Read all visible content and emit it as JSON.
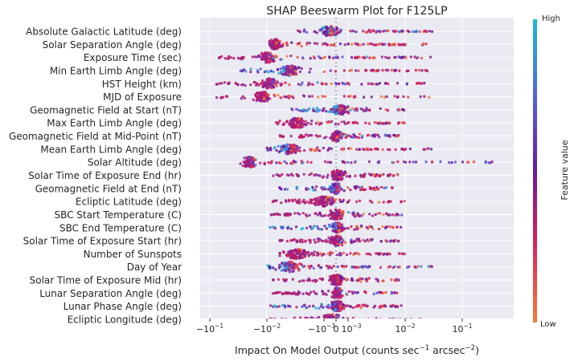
{
  "chart_data": {
    "type": "scatter",
    "title": "SHAP Beeswarm Plot for F125LP",
    "xlabel_main": "Impact On Model Output (counts sec",
    "xlabel_sup1": "−1",
    "xlabel_mid": " arcsec",
    "xlabel_sup2": "−2",
    "xlabel_end": ")",
    "x_ticks": [
      {
        "label": "−10",
        "sup": "−1",
        "value": -0.1
      },
      {
        "label": "−10",
        "sup": "−2",
        "value": -0.01
      },
      {
        "label": "−10",
        "sup": "−3",
        "value": -0.001
      },
      {
        "label": "0",
        "sup": "",
        "value": 0
      },
      {
        "label": "10",
        "sup": "−3",
        "value": 0.001
      },
      {
        "label": "10",
        "sup": "−2",
        "value": 0.01
      },
      {
        "label": "10",
        "sup": "−1",
        "value": 0.1
      }
    ],
    "x_scale": "symlog",
    "colorbar": {
      "label": "Feature value",
      "high": "High",
      "low": "Low"
    },
    "colors": {
      "high": "#1fbad6",
      "mid": "#6a1b9a",
      "mid2": "#d81b60",
      "low": "#f57c3a",
      "plot_bg": "#eaeaf2",
      "grid": "#ffffff"
    },
    "features": [
      {
        "name": "Absolute Galactic Latitude (deg)",
        "min": -0.003,
        "max": 0.03,
        "center": -0.0005,
        "spread": 0.6
      },
      {
        "name": "Solar Separation Angle (deg)",
        "min": -0.009,
        "max": 0.03,
        "center": -0.007,
        "spread": 0.5
      },
      {
        "name": "Exposure Time (sec)",
        "min": -0.07,
        "max": 0.03,
        "center": -0.01,
        "spread": 0.7
      },
      {
        "name": "Min Earth Limb Angle (deg)",
        "min": -0.03,
        "max": 0.03,
        "center": -0.004,
        "spread": 0.8
      },
      {
        "name": "HST Height (km)",
        "min": -0.08,
        "max": 0.03,
        "center": -0.009,
        "spread": 0.6
      },
      {
        "name": "MJD of Exposure",
        "min": -0.08,
        "max": 0.03,
        "center": -0.012,
        "spread": 0.5
      },
      {
        "name": "Geomagnetic Field at Start (nT)",
        "min": -0.004,
        "max": 0.01,
        "center": 0.0003,
        "spread": 0.6
      },
      {
        "name": "Max Earth Limb Angle (deg)",
        "min": -0.007,
        "max": 0.01,
        "center": -0.003,
        "spread": 0.6
      },
      {
        "name": "Geomagnetic Field at Mid-Point (nT)",
        "min": -0.006,
        "max": 0.008,
        "center": 5e-05,
        "spread": 0.4
      },
      {
        "name": "Mean Earth Limb Angle (deg)",
        "min": -0.01,
        "max": 0.03,
        "center": -0.004,
        "spread": 0.8
      },
      {
        "name": "Solar Altitude (deg)",
        "min": -0.03,
        "max": 0.5,
        "center": -0.02,
        "spread": 0.5
      },
      {
        "name": "Solar Time of Exposure End (hr)",
        "min": -0.008,
        "max": 0.008,
        "center": 0.0001,
        "spread": 0.5
      },
      {
        "name": "Geomagnetic Field at End (nT)",
        "min": -0.006,
        "max": 0.006,
        "center": 2e-05,
        "spread": 0.3
      },
      {
        "name": "Ecliptic Latitude (deg)",
        "min": -0.008,
        "max": 0.01,
        "center": -0.001,
        "spread": 0.7
      },
      {
        "name": "SBC Start Temperature (C)",
        "min": -0.009,
        "max": 0.009,
        "center": 0.0001,
        "spread": 0.5
      },
      {
        "name": "SBC End Temperature (C)",
        "min": -0.009,
        "max": 0.009,
        "center": 0.0001,
        "spread": 0.5
      },
      {
        "name": "Solar Time of Exposure Start (hr)",
        "min": -0.008,
        "max": 0.008,
        "center": 0.0001,
        "spread": 0.5
      },
      {
        "name": "Number of Sunspots",
        "min": -0.006,
        "max": 0.01,
        "center": -0.003,
        "spread": 0.8
      },
      {
        "name": "Day of Year",
        "min": -0.01,
        "max": 0.03,
        "center": -0.004,
        "spread": 0.9
      },
      {
        "name": "Solar Time of Exposure Mid (hr)",
        "min": -0.008,
        "max": 0.008,
        "center": 0.0001,
        "spread": 0.5
      },
      {
        "name": "Lunar Separation Angle (deg)",
        "min": -0.008,
        "max": 0.008,
        "center": 0.0001,
        "spread": 0.4
      },
      {
        "name": "Lunar Phase Angle (deg)",
        "min": -0.009,
        "max": 0.009,
        "center": 0.0001,
        "spread": 0.5
      },
      {
        "name": "Ecliptic Longitude (deg)",
        "min": -0.009,
        "max": 0.02,
        "center": -0.0003,
        "spread": 0.6
      }
    ]
  }
}
